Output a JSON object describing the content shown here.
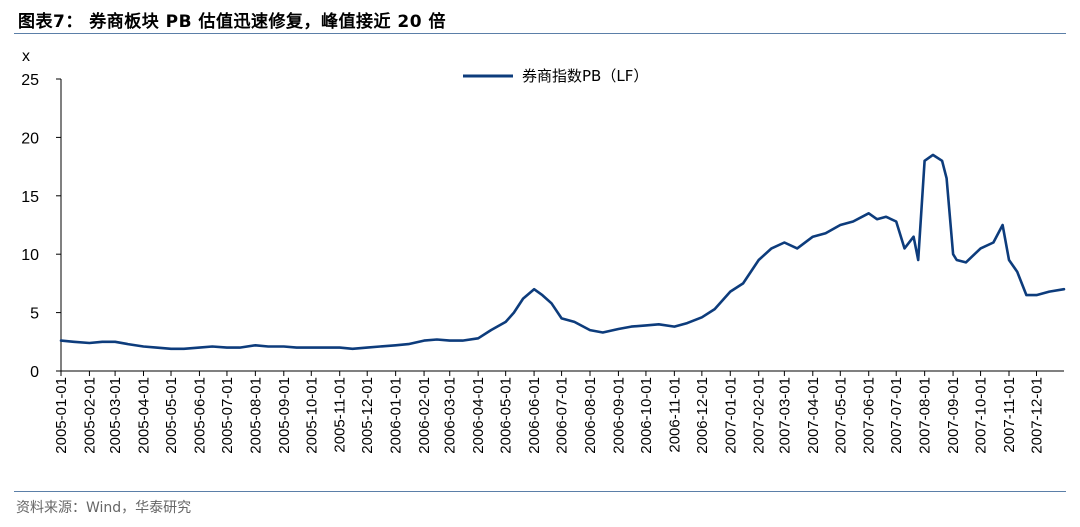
{
  "header": {
    "title": "图表7： 券商板块 PB 估值迅速修复，峰值接近 20 倍"
  },
  "footer": {
    "source": "资料来源：Wind，华泰研究"
  },
  "chart_data": {
    "type": "line",
    "title": "图表7： 券商板块 PB 估值迅速修复，峰值接近 20 倍",
    "ylabel": "x",
    "ylim": [
      0,
      25
    ],
    "yticks": [
      0,
      5,
      10,
      15,
      20,
      25
    ],
    "xlim": [
      "2005-01-01",
      "2007-12-31"
    ],
    "x_tick_labels": [
      "2005-01-01",
      "2005-02-01",
      "2005-03-01",
      "2005-04-01",
      "2005-05-01",
      "2005-06-01",
      "2005-07-01",
      "2005-08-01",
      "2005-09-01",
      "2005-10-01",
      "2005-11-01",
      "2005-12-01",
      "2006-01-01",
      "2006-02-01",
      "2006-03-01",
      "2006-04-01",
      "2006-05-01",
      "2006-06-01",
      "2006-07-01",
      "2006-08-01",
      "2006-09-01",
      "2006-10-01",
      "2006-11-01",
      "2006-12-01",
      "2007-01-01",
      "2007-02-01",
      "2007-03-01",
      "2007-04-01",
      "2007-05-01",
      "2007-06-01",
      "2007-07-01",
      "2007-08-01",
      "2007-09-01",
      "2007-10-01",
      "2007-11-01",
      "2007-12-01"
    ],
    "grid": false,
    "legend_position": "top-center",
    "series": [
      {
        "name": "券商指数PB（LF）",
        "color": "#0d3c7c",
        "x": [
          "2005-01-01",
          "2005-01-15",
          "2005-02-01",
          "2005-02-15",
          "2005-03-01",
          "2005-03-15",
          "2005-04-01",
          "2005-04-15",
          "2005-05-01",
          "2005-05-15",
          "2005-06-01",
          "2005-06-15",
          "2005-07-01",
          "2005-07-15",
          "2005-08-01",
          "2005-08-15",
          "2005-09-01",
          "2005-09-15",
          "2005-10-01",
          "2005-10-15",
          "2005-11-01",
          "2005-11-15",
          "2005-12-01",
          "2005-12-15",
          "2006-01-01",
          "2006-01-15",
          "2006-02-01",
          "2006-02-15",
          "2006-03-01",
          "2006-03-15",
          "2006-04-01",
          "2006-04-15",
          "2006-05-01",
          "2006-05-10",
          "2006-05-20",
          "2006-06-01",
          "2006-06-10",
          "2006-06-20",
          "2006-07-01",
          "2006-07-15",
          "2006-08-01",
          "2006-08-15",
          "2006-09-01",
          "2006-09-15",
          "2006-10-01",
          "2006-10-15",
          "2006-11-01",
          "2006-11-15",
          "2006-12-01",
          "2006-12-15",
          "2007-01-01",
          "2007-01-15",
          "2007-02-01",
          "2007-02-15",
          "2007-03-01",
          "2007-03-15",
          "2007-04-01",
          "2007-04-15",
          "2007-05-01",
          "2007-05-15",
          "2007-06-01",
          "2007-06-10",
          "2007-06-20",
          "2007-07-01",
          "2007-07-10",
          "2007-07-20",
          "2007-07-25",
          "2007-08-01",
          "2007-08-10",
          "2007-08-20",
          "2007-08-25",
          "2007-09-01",
          "2007-09-05",
          "2007-09-15",
          "2007-10-01",
          "2007-10-15",
          "2007-10-25",
          "2007-11-01",
          "2007-11-10",
          "2007-11-20",
          "2007-12-01",
          "2007-12-15",
          "2007-12-31"
        ],
        "y": [
          2.6,
          2.5,
          2.4,
          2.5,
          2.5,
          2.3,
          2.1,
          2.0,
          1.9,
          1.9,
          2.0,
          2.1,
          2.0,
          2.0,
          2.2,
          2.1,
          2.1,
          2.0,
          2.0,
          2.0,
          2.0,
          1.9,
          2.0,
          2.1,
          2.2,
          2.3,
          2.6,
          2.7,
          2.6,
          2.6,
          2.8,
          3.5,
          4.2,
          5.0,
          6.2,
          7.0,
          6.5,
          5.8,
          4.5,
          4.2,
          3.5,
          3.3,
          3.6,
          3.8,
          3.9,
          4.0,
          3.8,
          4.1,
          4.6,
          5.3,
          6.8,
          7.5,
          9.5,
          10.5,
          11.0,
          10.5,
          11.5,
          11.8,
          12.5,
          12.8,
          13.5,
          13.0,
          13.2,
          12.8,
          10.5,
          11.5,
          9.5,
          18.0,
          18.5,
          18.0,
          16.5,
          10.0,
          9.5,
          9.3,
          10.5,
          11.0,
          12.5,
          9.5,
          8.5,
          6.5,
          6.5,
          6.8,
          7.0
        ]
      }
    ]
  }
}
